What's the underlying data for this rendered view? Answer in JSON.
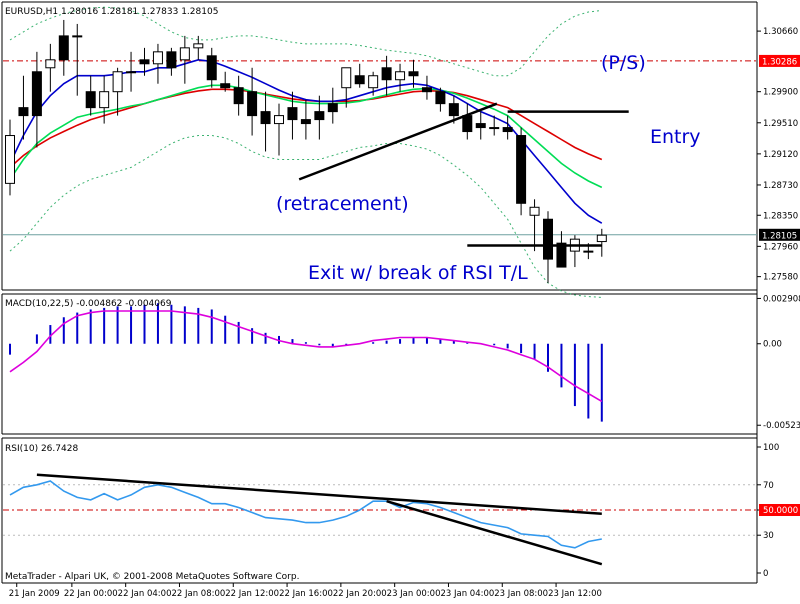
{
  "colors": {
    "background": "#ffffff",
    "frame": "#000000",
    "grid": "#b8b8b8",
    "bull_body": "#ffffff",
    "bear_body": "#000000",
    "candle_outline": "#000000",
    "bollinger": "#3cb371",
    "ema_fast": "#0000cc",
    "ema_mid": "#00dd55",
    "ema_slow": "#dd0000",
    "price_line": "#6fa0a0",
    "level_line": "#cc0000",
    "label_bg": "#000000",
    "label_red_bg": "#ff0000",
    "label_text": "#ffffff",
    "annotation_text": "#0000cc",
    "trendline": "#000000",
    "macd_hist": "#0000cc",
    "macd_signal": "#dd00dd",
    "rsi_line": "#3399ee",
    "rsi_level": "#bbbbbb",
    "rsi_mid_level": "#cc0000"
  },
  "chart_data": [
    {
      "type": "candlestick",
      "title": "EURUSD,H1  1.28016 1.28181 1.27833 1.28105",
      "ylim": [
        1.2745,
        1.31
      ],
      "y_ticks": [
        1.3066,
        1.299,
        1.2951,
        1.2912,
        1.2873,
        1.2835,
        1.2796,
        1.2758
      ],
      "y_tick_labels": [
        "1.30660",
        "1.29900",
        "1.29510",
        "1.29120",
        "1.28730",
        "1.28350",
        "1.27960",
        "1.27580"
      ],
      "current_price": 1.28105,
      "current_price_label": "1.28105",
      "level": 1.30286,
      "level_label": "1.30286",
      "candles": [
        {
          "o": 1.2875,
          "h": 1.2955,
          "l": 1.286,
          "c": 1.2935
        },
        {
          "o": 1.297,
          "h": 1.301,
          "l": 1.293,
          "c": 1.296
        },
        {
          "o": 1.3015,
          "h": 1.304,
          "l": 1.292,
          "c": 1.296
        },
        {
          "o": 1.302,
          "h": 1.305,
          "l": 1.299,
          "c": 1.303
        },
        {
          "o": 1.306,
          "h": 1.308,
          "l": 1.301,
          "c": 1.303
        },
        {
          "o": 1.306,
          "h": 1.3075,
          "l": 1.2985,
          "c": 1.306
        },
        {
          "o": 1.299,
          "h": 1.301,
          "l": 1.296,
          "c": 1.297
        },
        {
          "o": 1.297,
          "h": 1.301,
          "l": 1.295,
          "c": 1.299
        },
        {
          "o": 1.299,
          "h": 1.302,
          "l": 1.296,
          "c": 1.3015
        },
        {
          "o": 1.3015,
          "h": 1.304,
          "l": 1.299,
          "c": 1.3015
        },
        {
          "o": 1.303,
          "h": 1.3045,
          "l": 1.301,
          "c": 1.3025
        },
        {
          "o": 1.3025,
          "h": 1.305,
          "l": 1.3,
          "c": 1.304
        },
        {
          "o": 1.304,
          "h": 1.3045,
          "l": 1.301,
          "c": 1.302
        },
        {
          "o": 1.303,
          "h": 1.306,
          "l": 1.3,
          "c": 1.3045
        },
        {
          "o": 1.3045,
          "h": 1.306,
          "l": 1.303,
          "c": 1.305
        },
        {
          "o": 1.3035,
          "h": 1.3045,
          "l": 1.2995,
          "c": 1.3005
        },
        {
          "o": 1.3,
          "h": 1.3015,
          "l": 1.299,
          "c": 1.2995
        },
        {
          "o": 1.2995,
          "h": 1.301,
          "l": 1.296,
          "c": 1.2975
        },
        {
          "o": 1.299,
          "h": 1.302,
          "l": 1.2935,
          "c": 1.296
        },
        {
          "o": 1.2965,
          "h": 1.299,
          "l": 1.2915,
          "c": 1.295
        },
        {
          "o": 1.295,
          "h": 1.2975,
          "l": 1.291,
          "c": 1.296
        },
        {
          "o": 1.297,
          "h": 1.299,
          "l": 1.293,
          "c": 1.2955
        },
        {
          "o": 1.2955,
          "h": 1.298,
          "l": 1.293,
          "c": 1.295
        },
        {
          "o": 1.2965,
          "h": 1.2985,
          "l": 1.293,
          "c": 1.2955
        },
        {
          "o": 1.2975,
          "h": 1.2995,
          "l": 1.295,
          "c": 1.2965
        },
        {
          "o": 1.2995,
          "h": 1.302,
          "l": 1.297,
          "c": 1.302
        },
        {
          "o": 1.301,
          "h": 1.3025,
          "l": 1.2995,
          "c": 1.3
        },
        {
          "o": 1.2995,
          "h": 1.3015,
          "l": 1.2985,
          "c": 1.301
        },
        {
          "o": 1.302,
          "h": 1.3035,
          "l": 1.2985,
          "c": 1.3005
        },
        {
          "o": 1.3005,
          "h": 1.3025,
          "l": 1.299,
          "c": 1.3015
        },
        {
          "o": 1.3015,
          "h": 1.303,
          "l": 1.2995,
          "c": 1.301
        },
        {
          "o": 1.2995,
          "h": 1.301,
          "l": 1.298,
          "c": 1.299
        },
        {
          "o": 1.299,
          "h": 1.2995,
          "l": 1.2965,
          "c": 1.2975
        },
        {
          "o": 1.2975,
          "h": 1.2985,
          "l": 1.295,
          "c": 1.296
        },
        {
          "o": 1.296,
          "h": 1.2975,
          "l": 1.293,
          "c": 1.294
        },
        {
          "o": 1.295,
          "h": 1.2965,
          "l": 1.293,
          "c": 1.2945
        },
        {
          "o": 1.2945,
          "h": 1.296,
          "l": 1.2935,
          "c": 1.2945
        },
        {
          "o": 1.2945,
          "h": 1.296,
          "l": 1.293,
          "c": 1.294
        },
        {
          "o": 1.2935,
          "h": 1.2945,
          "l": 1.2835,
          "c": 1.285
        },
        {
          "o": 1.2835,
          "h": 1.2855,
          "l": 1.279,
          "c": 1.2845
        },
        {
          "o": 1.283,
          "h": 1.284,
          "l": 1.275,
          "c": 1.278
        },
        {
          "o": 1.28,
          "h": 1.2815,
          "l": 1.277,
          "c": 1.277
        },
        {
          "o": 1.279,
          "h": 1.281,
          "l": 1.277,
          "c": 1.2805
        },
        {
          "o": 1.279,
          "h": 1.28,
          "l": 1.278,
          "c": 1.279
        },
        {
          "o": 1.2802,
          "h": 1.2818,
          "l": 1.2783,
          "c": 1.281
        }
      ],
      "ema_fast": [
        1.29,
        1.2935,
        1.2965,
        1.2985,
        1.3,
        1.301,
        1.301,
        1.301,
        1.3012,
        1.3015,
        1.3015,
        1.302,
        1.302,
        1.3025,
        1.303,
        1.3028,
        1.3022,
        1.3015,
        1.3008,
        1.3,
        1.2992,
        1.2985,
        1.298,
        1.2978,
        1.2978,
        1.298,
        1.2985,
        1.299,
        1.2995,
        1.2998,
        1.3,
        1.2998,
        1.2992,
        1.2985,
        1.2975,
        1.2965,
        1.2958,
        1.295,
        1.293,
        1.291,
        1.289,
        1.287,
        1.285,
        1.2835,
        1.2825
      ],
      "ema_mid": [
        1.288,
        1.2905,
        1.2925,
        1.2938,
        1.2948,
        1.2958,
        1.2962,
        1.2965,
        1.2968,
        1.2972,
        1.2975,
        1.298,
        1.2985,
        1.299,
        1.2995,
        1.2998,
        1.2998,
        1.2995,
        1.299,
        1.2986,
        1.2982,
        1.2978,
        1.2976,
        1.2975,
        1.2975,
        1.2976,
        1.2978,
        1.2982,
        1.2986,
        1.299,
        1.2993,
        1.2994,
        1.2992,
        1.2988,
        1.2982,
        1.2975,
        1.2968,
        1.296,
        1.2945,
        1.293,
        1.2915,
        1.29,
        1.2888,
        1.2878,
        1.287
      ],
      "ema_slow": [
        1.2895,
        1.291,
        1.2922,
        1.2932,
        1.294,
        1.2948,
        1.2955,
        1.296,
        1.2965,
        1.297,
        1.2975,
        1.298,
        1.2984,
        1.2988,
        1.2991,
        1.2993,
        1.2993,
        1.2992,
        1.299,
        1.2987,
        1.2984,
        1.2981,
        1.2979,
        1.2978,
        1.2978,
        1.2978,
        1.2979,
        1.2981,
        1.2984,
        1.2987,
        1.299,
        1.2991,
        1.2991,
        1.2989,
        1.2985,
        1.298,
        1.2975,
        1.297,
        1.296,
        1.295,
        1.294,
        1.293,
        1.292,
        1.2912,
        1.2905
      ],
      "bb_upper": [
        1.3055,
        1.3065,
        1.3075,
        1.3082,
        1.3088,
        1.3092,
        1.3095,
        1.3096,
        1.3095,
        1.3092,
        1.3085,
        1.3075,
        1.3065,
        1.3058,
        1.3055,
        1.3055,
        1.3058,
        1.306,
        1.306,
        1.3058,
        1.3055,
        1.3052,
        1.305,
        1.305,
        1.305,
        1.305,
        1.3048,
        1.3045,
        1.3042,
        1.304,
        1.3038,
        1.3035,
        1.303,
        1.3025,
        1.302,
        1.3015,
        1.301,
        1.301,
        1.302,
        1.304,
        1.306,
        1.3075,
        1.3085,
        1.309,
        1.3092
      ],
      "bb_lower": [
        1.279,
        1.2805,
        1.2825,
        1.2845,
        1.286,
        1.2872,
        1.288,
        1.2885,
        1.289,
        1.2895,
        1.2905,
        1.2915,
        1.2925,
        1.2932,
        1.2935,
        1.2935,
        1.2932,
        1.2925,
        1.2915,
        1.2908,
        1.2905,
        1.2905,
        1.2905,
        1.2905,
        1.291,
        1.2915,
        1.292,
        1.2922,
        1.2925,
        1.2925,
        1.2922,
        1.2918,
        1.291,
        1.2898,
        1.2885,
        1.287,
        1.285,
        1.283,
        1.28,
        1.277,
        1.275,
        1.274,
        1.2735,
        1.2733,
        1.2732
      ],
      "annotations": [
        "(P/S)",
        "Entry",
        "(retracement)",
        "Exit w/ break of RSI T/L"
      ],
      "trendlines": [
        {
          "from": [
            21.5,
            1.288
          ],
          "to": [
            36.2,
            1.2975
          ]
        },
        {
          "from": [
            37.0,
            1.2965
          ],
          "to": [
            46.0,
            1.2965
          ]
        },
        {
          "from": [
            34.0,
            1.2797
          ],
          "to": [
            44.0,
            1.2797
          ]
        }
      ]
    },
    {
      "type": "bar",
      "title": "MACD(10,22,5) -0.004862 -0.004069",
      "ylim": [
        -0.0056,
        0.003
      ],
      "y_ticks": [
        0.002908,
        0.0,
        -0.00523
      ],
      "y_tick_labels": [
        "0.002908",
        "0.00",
        "-0.00523"
      ],
      "histogram": [
        -0.0007,
        0.0,
        0.0006,
        0.0012,
        0.0017,
        0.002,
        0.0022,
        0.0023,
        0.0024,
        0.0024,
        0.0025,
        0.0026,
        0.0025,
        0.0024,
        0.0023,
        0.0022,
        0.0018,
        0.0014,
        0.001,
        0.0007,
        0.0005,
        0.0003,
        0.0001,
        -0.0001,
        -0.0002,
        -0.0001,
        0.0,
        0.0001,
        0.0002,
        0.0003,
        0.0004,
        0.0004,
        0.0003,
        0.0002,
        0.0001,
        0.0,
        -0.0001,
        -0.0003,
        -0.0006,
        -0.001,
        -0.0018,
        -0.0028,
        -0.004,
        -0.0048,
        -0.005
      ],
      "signal": [
        -0.0018,
        -0.0012,
        -0.0005,
        0.0005,
        0.0013,
        0.0018,
        0.002,
        0.0021,
        0.0021,
        0.0021,
        0.0021,
        0.0021,
        0.0021,
        0.002,
        0.0019,
        0.0017,
        0.0014,
        0.0011,
        0.0008,
        0.0005,
        0.0002,
        0.0,
        -0.0001,
        -0.0002,
        -0.0002,
        -0.0001,
        0.0,
        0.0002,
        0.0003,
        0.0004,
        0.0004,
        0.0004,
        0.0003,
        0.0002,
        0.0001,
        0.0,
        -0.0002,
        -0.0004,
        -0.0007,
        -0.001,
        -0.0015,
        -0.0021,
        -0.0027,
        -0.0032,
        -0.0037
      ]
    },
    {
      "type": "line",
      "title": "RSI(10) 26.7428",
      "ylim": [
        0,
        100
      ],
      "y_ticks": [
        100,
        70,
        50,
        30,
        0
      ],
      "y_tick_labels": [
        "100",
        "70",
        "50.0000",
        "30",
        "0"
      ],
      "values": [
        62,
        68,
        70,
        73,
        65,
        60,
        58,
        63,
        58,
        62,
        68,
        70,
        68,
        64,
        60,
        55,
        55,
        52,
        48,
        44,
        43,
        42,
        40,
        40,
        42,
        45,
        50,
        57,
        57,
        52,
        56,
        55,
        52,
        48,
        44,
        40,
        38,
        36,
        31,
        30,
        29,
        22,
        20,
        25,
        27
      ],
      "levels": [
        70,
        50,
        30
      ],
      "trendlines": [
        {
          "from": [
            2.0,
            78
          ],
          "to": [
            44.0,
            47
          ]
        },
        {
          "from": [
            28.0,
            57
          ],
          "to": [
            44.0,
            7
          ]
        }
      ],
      "x_tick_labels": [
        "21 Jan 2009",
        "22 Jan 00:00",
        "22 Jan 04:00",
        "22 Jan 08:00",
        "22 Jan 12:00",
        "22 Jan 16:00",
        "22 Jan 20:00",
        "23 Jan 00:00",
        "23 Jan 04:00",
        "23 Jan 08:00",
        "23 Jan 12:00"
      ],
      "x_tick_positions": [
        0.5,
        4.6,
        8.6,
        12.6,
        16.6,
        20.6,
        24.6,
        28.6,
        32.6,
        36.6,
        40.6
      ]
    }
  ],
  "footer_text": "MetaTrader - Alpari UK, © 2001-2008 MetaQuotes Software Corp."
}
